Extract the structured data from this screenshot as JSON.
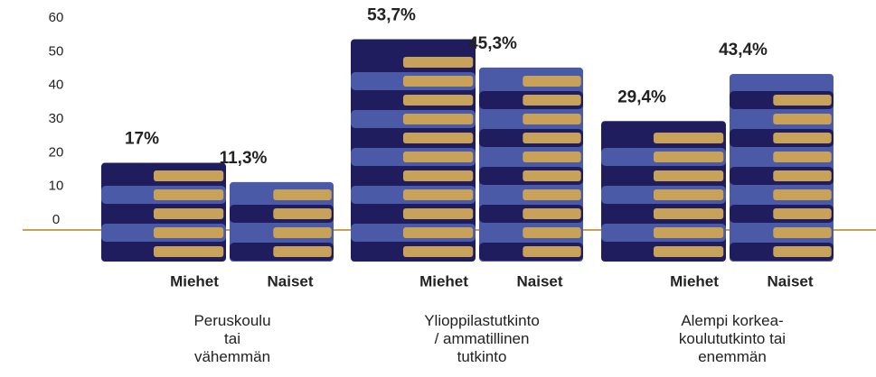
{
  "chart_data": {
    "type": "bar",
    "categories": [
      "Peruskoulu\ntai\nvähemmän",
      "Ylioppilastutkinto\n/ ammatillinen\ntutkinto",
      "Alempi korkea-\nkoulututkinto tai\nenemmän"
    ],
    "series": [
      {
        "name": "Miehet",
        "color": "#1f1d5e",
        "values": [
          17,
          53.7,
          29.4
        ],
        "value_labels": [
          "17%",
          "53,7%",
          "29,4%"
        ]
      },
      {
        "name": "Naiset",
        "color": "#4b5aa6",
        "values": [
          11.3,
          45.3,
          43.4
        ],
        "value_labels": [
          "11,3%",
          "45,3%",
          "43,4%"
        ]
      }
    ],
    "ylim": [
      0,
      60
    ],
    "yticks": [
      0,
      10,
      20,
      30,
      40,
      50,
      60
    ]
  }
}
